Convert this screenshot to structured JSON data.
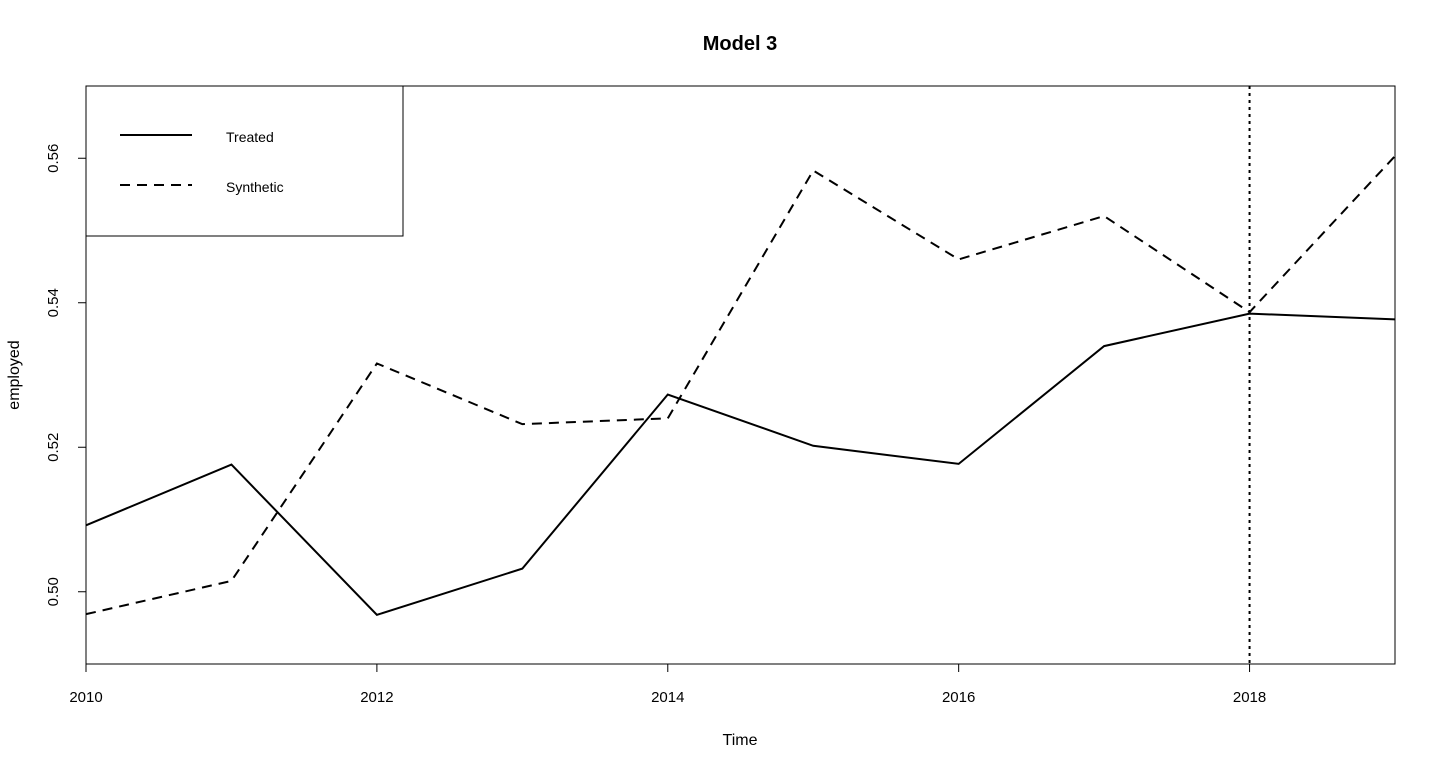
{
  "chart_data": {
    "type": "line",
    "title": "Model 3",
    "xlabel": "Time",
    "ylabel": "employed",
    "xlim": [
      2010,
      2019
    ],
    "ylim": [
      0.49,
      0.57
    ],
    "x_ticks": [
      2010,
      2012,
      2014,
      2016,
      2018
    ],
    "y_ticks": [
      0.5,
      0.52,
      0.54,
      0.56
    ],
    "x_tick_labels": [
      "2010",
      "2012",
      "2014",
      "2016",
      "2018"
    ],
    "y_tick_labels": [
      "0.50",
      "0.52",
      "0.54",
      "0.56"
    ],
    "x": [
      2010,
      2011,
      2012,
      2013,
      2014,
      2015,
      2016,
      2017,
      2018,
      2019
    ],
    "series": [
      {
        "name": "Treated",
        "line_style": "solid",
        "values": [
          0.5092,
          0.5176,
          0.4968,
          0.5032,
          0.5273,
          0.5202,
          0.5177,
          0.534,
          0.5385,
          0.5377
        ]
      },
      {
        "name": "Synthetic",
        "line_style": "dashed",
        "values": [
          0.4969,
          0.5015,
          0.5316,
          0.5232,
          0.524,
          0.5583,
          0.546,
          0.552,
          0.5387,
          0.5603
        ]
      }
    ],
    "vline": {
      "x": 2018,
      "line_style": "dotted"
    },
    "legend": {
      "position": "top-left"
    },
    "grid": false,
    "color": "#000000"
  }
}
